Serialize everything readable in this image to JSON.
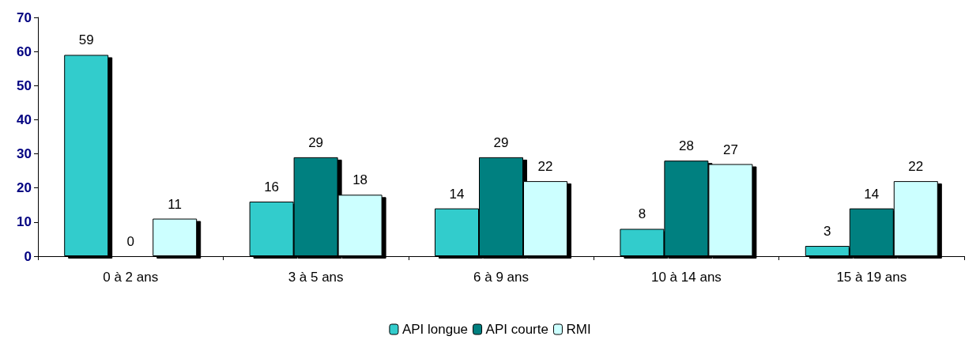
{
  "chart_data": {
    "type": "bar",
    "categories": [
      "0 à 2 ans",
      "3 à 5 ans",
      "6 à 9 ans",
      "10 à 14 ans",
      "15 à 19 ans"
    ],
    "series": [
      {
        "name": "API longue",
        "color": "#33cccc",
        "values": [
          59,
          16,
          14,
          8,
          3
        ]
      },
      {
        "name": "API courte",
        "color": "#008080",
        "values": [
          0,
          29,
          29,
          28,
          14
        ]
      },
      {
        "name": "RMI",
        "color": "#ccffff",
        "values": [
          11,
          18,
          22,
          27,
          22
        ]
      }
    ],
    "ylim": [
      0,
      70
    ],
    "yticks": [
      0,
      10,
      20,
      30,
      40,
      50,
      60,
      70
    ],
    "grid": false,
    "legend": "bottom",
    "data_labels": true
  }
}
